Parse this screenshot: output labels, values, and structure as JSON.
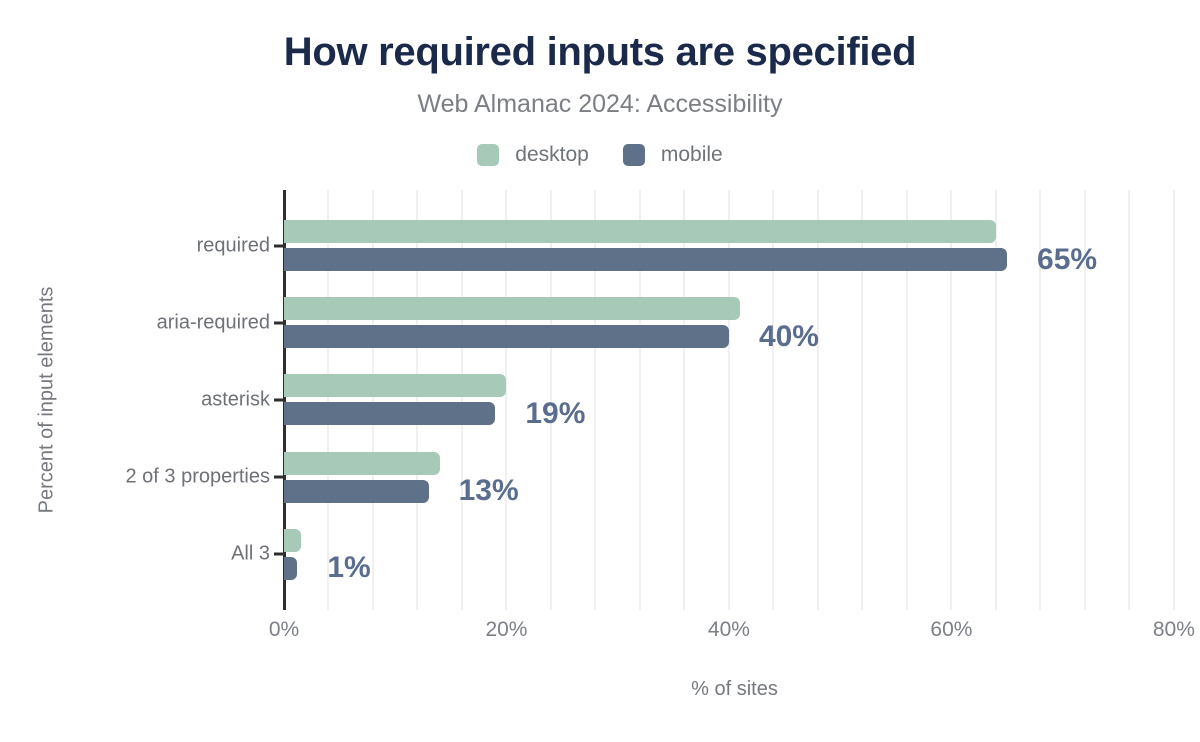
{
  "chart_data": {
    "type": "bar",
    "orientation": "horizontal",
    "title": "How required inputs are specified",
    "subtitle": "Web Almanac 2024: Accessibility",
    "xlabel": "% of sites",
    "ylabel": "Percent of input elements",
    "categories": [
      "required",
      "aria-required",
      "asterisk",
      "2 of 3 properties",
      "All 3"
    ],
    "series": [
      {
        "name": "desktop",
        "color": "#a7c9b7",
        "values": [
          64,
          41,
          20,
          14,
          1.5
        ]
      },
      {
        "name": "mobile",
        "color": "#5f7089",
        "values": [
          65,
          40,
          19,
          13,
          1.2
        ]
      }
    ],
    "annotations": [
      "65%",
      "40%",
      "19%",
      "13%",
      "1%"
    ],
    "annotation_series": "mobile",
    "x_ticks": [
      "0%",
      "20%",
      "40%",
      "60%",
      "80%"
    ],
    "x_tick_values": [
      0,
      20,
      40,
      60,
      80
    ],
    "xlim": [
      0,
      81
    ],
    "minor_gridline_step": 4,
    "grid": true,
    "legend_position": "top",
    "colors": {
      "title": "#1b2a4b",
      "axis_text": "#75797e",
      "annotation": "#5a6d8e",
      "axis_line": "#2e2e2e",
      "gridline": "#f0f0f1",
      "background": "#ffffff"
    }
  }
}
